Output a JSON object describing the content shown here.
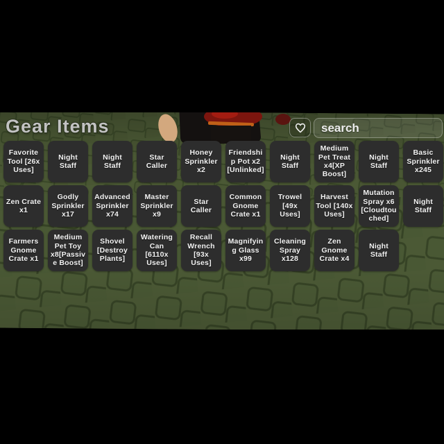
{
  "header": {
    "title": "Gear Items",
    "search": {
      "placeholder": "search",
      "value": ""
    },
    "favorite_button": {
      "icon": "heart-icon"
    }
  },
  "colors": {
    "background": "#000000",
    "ground_green": "#4b5935",
    "stud_outline": "#2f3d20",
    "tile_background": "#2d2d2d",
    "tile_text": "#f2f2f2",
    "title_text": "#c2c2c2"
  },
  "items": [
    {
      "label": "Favorite Tool [26x Uses]"
    },
    {
      "label": "Night Staff"
    },
    {
      "label": "Night Staff"
    },
    {
      "label": "Star Caller"
    },
    {
      "label": "Honey Sprinkler x2"
    },
    {
      "label": "Friendship Pot x2 [Unlinked]"
    },
    {
      "label": "Night Staff"
    },
    {
      "label": "Medium Pet Treat x4[XP Boost]"
    },
    {
      "label": "Night Staff"
    },
    {
      "label": "Basic Sprinkler x245"
    },
    {
      "label": "Zen Crate x1"
    },
    {
      "label": "Godly Sprinkler x17"
    },
    {
      "label": "Advanced Sprinkler x74"
    },
    {
      "label": "Master Sprinkler x9"
    },
    {
      "label": "Star Caller"
    },
    {
      "label": "Common Gnome Crate x1"
    },
    {
      "label": "Trowel [49x Uses]"
    },
    {
      "label": "Harvest Tool [140x Uses]"
    },
    {
      "label": "Mutation Spray x6 [Cloudtouched]"
    },
    {
      "label": "Night Staff"
    },
    {
      "label": "Farmers Gnome Crate x1"
    },
    {
      "label": "Medium Pet Toy x8[Passive Boost]"
    },
    {
      "label": "Shovel [Destroy Plants]"
    },
    {
      "label": "Watering Can [6110x Uses]"
    },
    {
      "label": "Recall Wrench [93x Uses]"
    },
    {
      "label": "Magnifying Glass x99"
    },
    {
      "label": "Cleaning Spray x128"
    },
    {
      "label": "Zen Gnome Crate x4"
    },
    {
      "label": "Night Staff"
    }
  ]
}
